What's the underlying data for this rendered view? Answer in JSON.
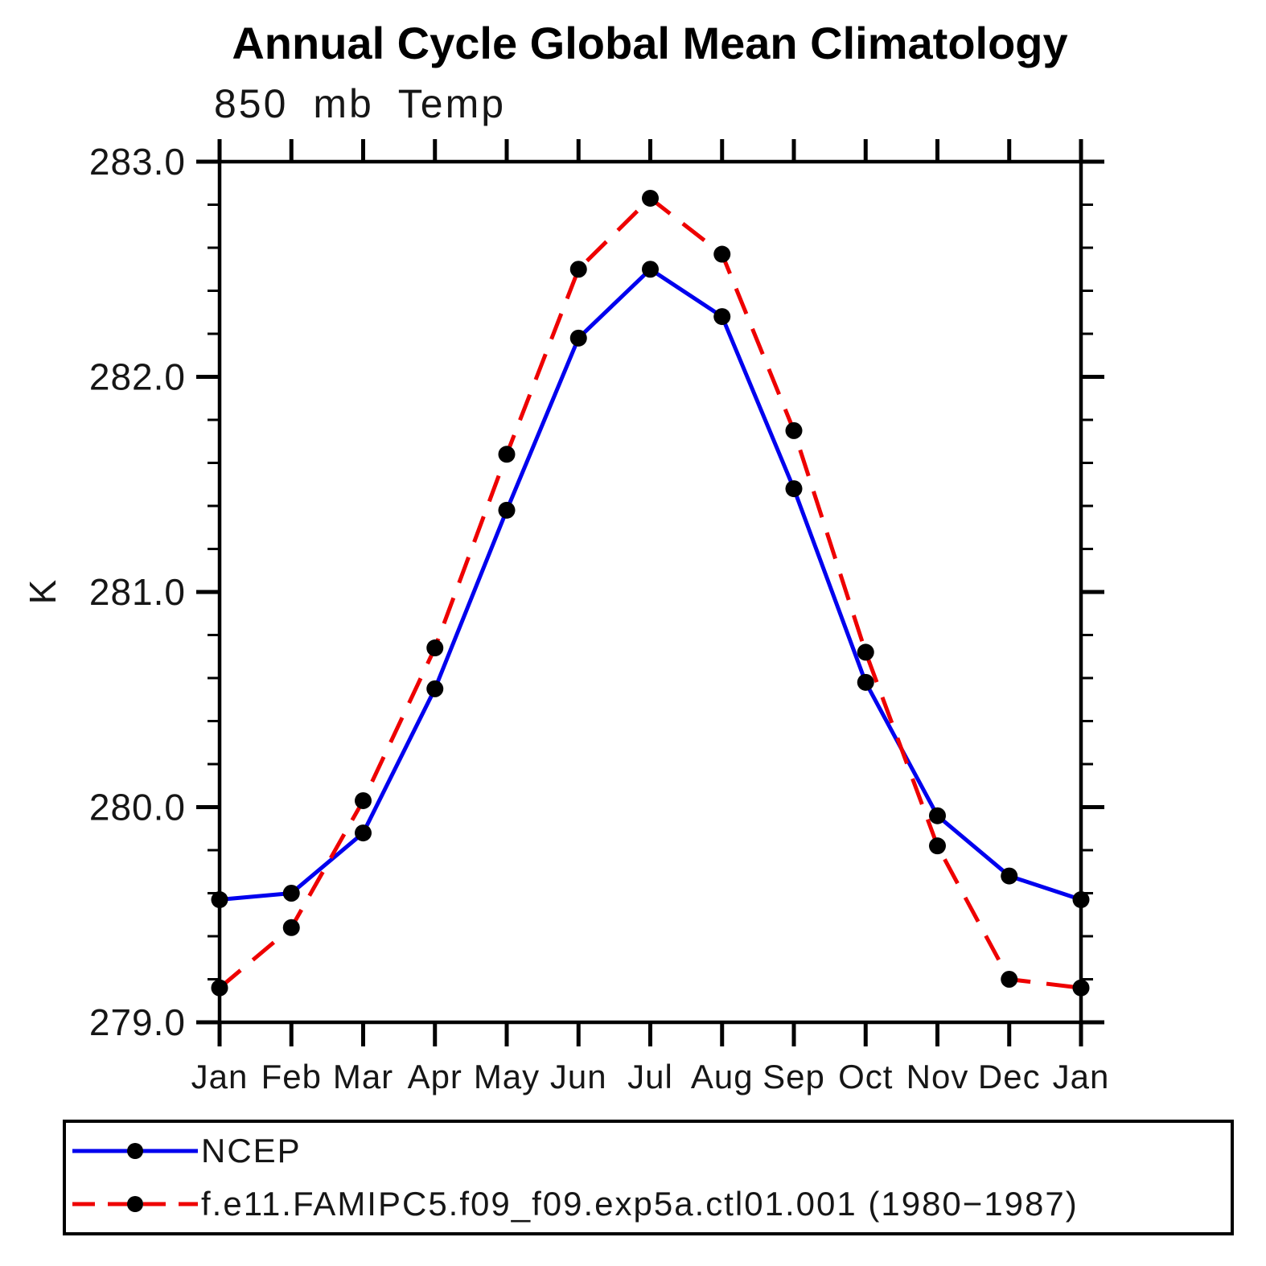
{
  "figure_title": "Annual Cycle Global Mean Climatology",
  "chart_data": {
    "type": "line",
    "title": "850 mb Temp",
    "xlabel": "",
    "ylabel": "K",
    "categories": [
      "Jan",
      "Feb",
      "Mar",
      "Apr",
      "May",
      "Jun",
      "Jul",
      "Aug",
      "Sep",
      "Oct",
      "Nov",
      "Dec",
      "Jan"
    ],
    "series": [
      {
        "name": "NCEP",
        "color": "#0000ee",
        "line_style": "solid",
        "marker": "circle",
        "marker_color": "#000000",
        "values": [
          279.57,
          279.6,
          279.88,
          280.55,
          281.38,
          282.18,
          282.5,
          282.28,
          281.48,
          280.58,
          279.96,
          279.68,
          279.57
        ]
      },
      {
        "name": "f.e11.FAMIPC5.f09_f09.exp5a.ctl01.001 (1980−1987)",
        "color": "#ee0000",
        "line_style": "dashed",
        "marker": "circle",
        "marker_color": "#000000",
        "values": [
          279.16,
          279.44,
          280.03,
          280.74,
          281.64,
          282.5,
          282.83,
          282.57,
          281.75,
          280.72,
          279.82,
          279.2,
          279.16
        ]
      }
    ],
    "ylim": [
      279.0,
      283.0
    ],
    "y_major_step": 1.0,
    "y_minor_step": 0.2,
    "ytick_labels": [
      "283.0",
      "282.0",
      "281.0",
      "280.0",
      "279.0"
    ],
    "grid": false,
    "legend_position": "bottom-left-box"
  }
}
